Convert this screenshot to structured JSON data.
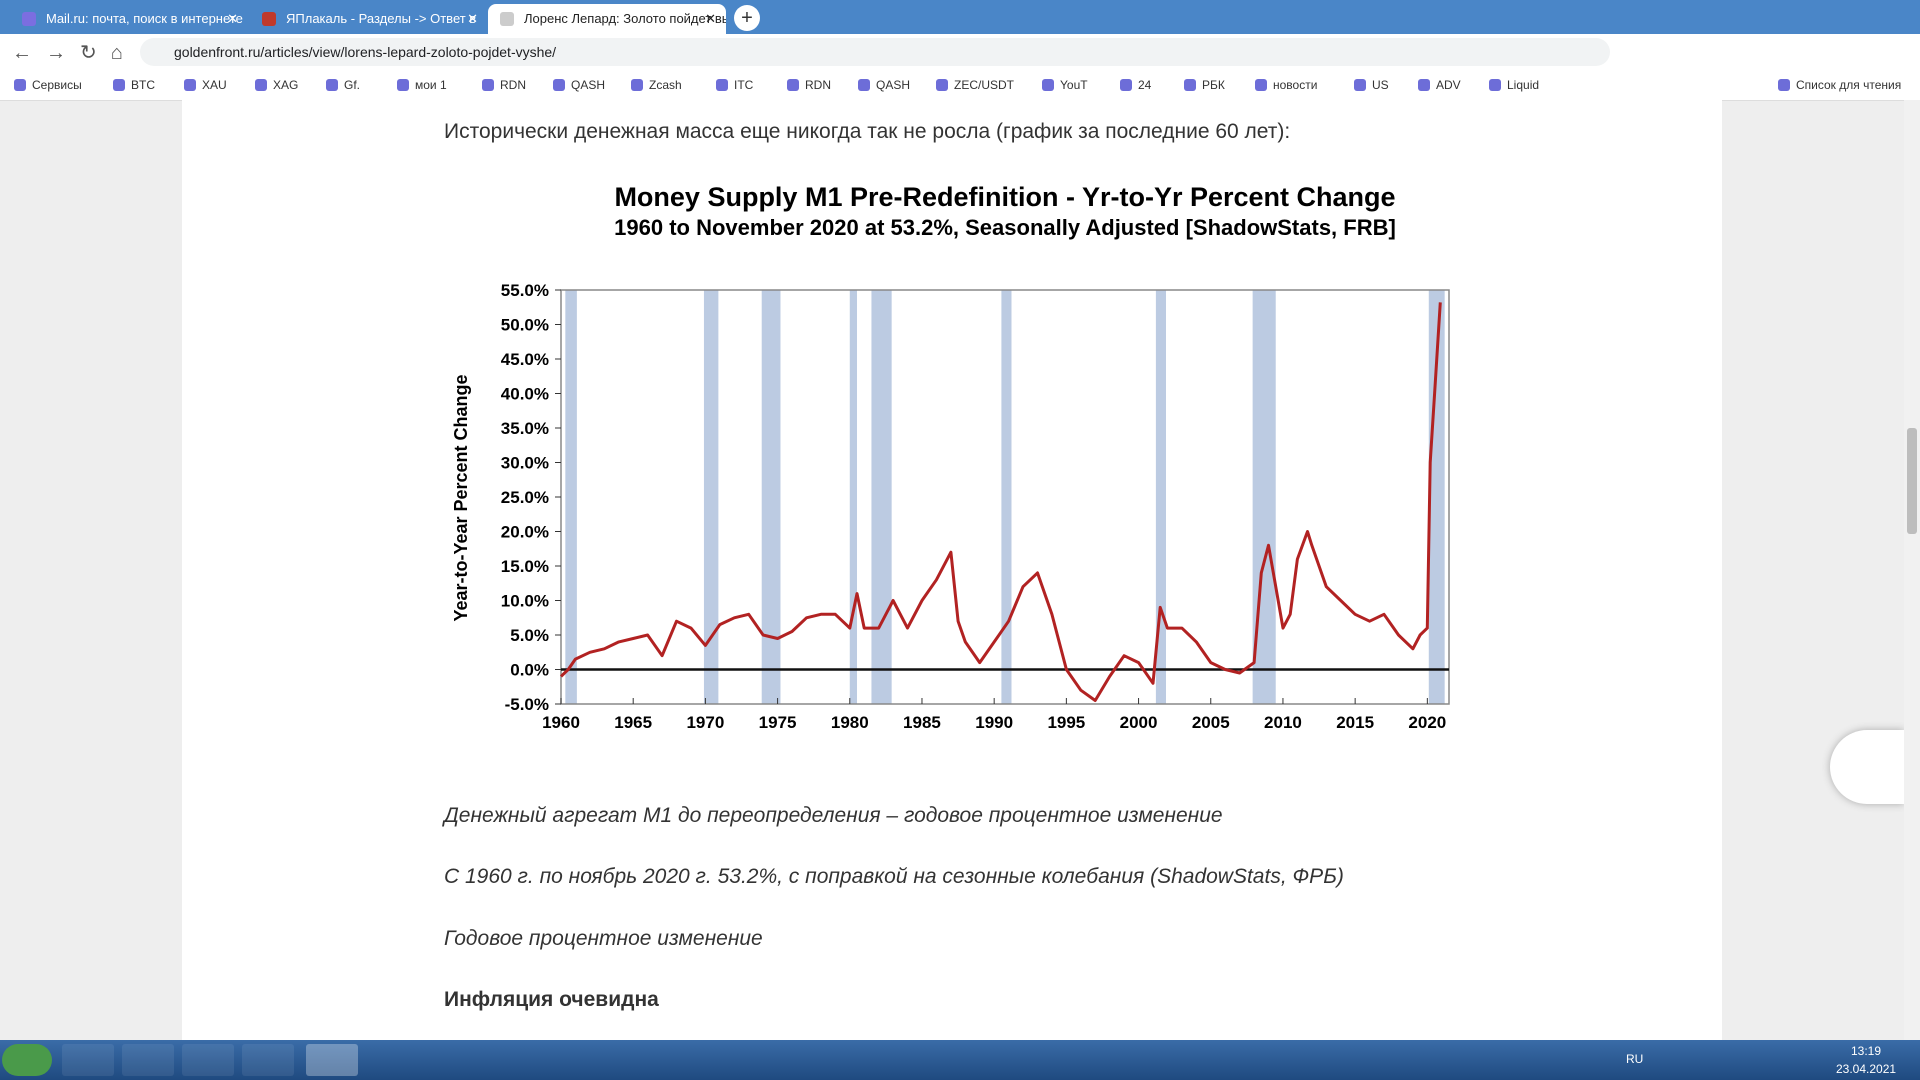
{
  "browser": {
    "tabs": [
      "Mail.ru: почта, поиск в интернете",
      "ЯПлакаль - Разделы -> Ответ в",
      "Лоренс Лепард: Золото пойдет выше"
    ],
    "address": "goldenfront.ru/articles/view/lorens-lepard-zoloto-pojdet-vyshe/",
    "bookmarks": [
      "Сервисы",
      "BTC",
      "XAU",
      "XAG",
      "Gf.",
      "мои 1",
      "RDN",
      "QASH",
      "Zcash",
      "ITC",
      "RDN",
      "QASH",
      "ZEC/USDT",
      "YouT",
      "24",
      "РБК",
      "новости",
      "US",
      "ADV",
      "Liquid"
    ],
    "reading_list": "Список для чтения"
  },
  "article": {
    "intro": "Исторически денежная масса еще никогда так не росла (график за последние 60 лет):",
    "captions": [
      "Денежный агрегат М1 до переопределения – годовое процентное изменение",
      "С 1960 г. по ноябрь 2020 г. 53.2%, с поправкой на сезонные колебания (ShadowStats, ФРБ)",
      "Годовое процентное изменение"
    ],
    "heading": "Инфляция очевидна"
  },
  "chart_data": {
    "type": "line",
    "title": "Money Supply M1 Pre-Redefinition -  Yr-to-Yr Percent Change",
    "subtitle": "1960 to November 2020 at 53.2%, Seasonally Adjusted  [ShadowStats, FRB]",
    "y_label": "Year-to-Year Percent Change",
    "color": "#b22222",
    "band_color": "#bccbe2",
    "x": [
      1960,
      1960.5,
      1961,
      1962,
      1963,
      1964,
      1965,
      1966,
      1967,
      1968,
      1969,
      1970,
      1971,
      1972,
      1973,
      1974,
      1975,
      1976,
      1977,
      1978,
      1979,
      1980,
      1980.5,
      1981,
      1982,
      1983,
      1984,
      1985,
      1986,
      1987,
      1987.5,
      1988,
      1989,
      1990,
      1991,
      1992,
      1993,
      1994,
      1995,
      1996,
      1997,
      1998,
      1999,
      2000,
      2001,
      2001.5,
      2002,
      2003,
      2004,
      2005,
      2006,
      2007,
      2008,
      2008.5,
      2009,
      2010,
      2010.5,
      2011,
      2011.7,
      2012,
      2013,
      2014,
      2015,
      2016,
      2017,
      2018,
      2019,
      2019.5,
      2020,
      2020.2,
      2020.5,
      2020.9
    ],
    "values": [
      -1,
      0,
      1.5,
      2.5,
      3,
      4,
      4.5,
      5,
      2,
      7,
      6,
      3.5,
      6.5,
      7.5,
      8,
      5,
      4.5,
      5.5,
      7.5,
      8,
      8,
      6,
      11,
      6,
      6,
      10,
      6,
      10,
      13,
      17,
      7,
      4,
      1,
      4,
      7,
      12,
      14,
      8,
      0,
      -3,
      -4.5,
      -1,
      2,
      1,
      -2,
      9,
      6,
      6,
      4,
      1,
      0,
      -0.5,
      1,
      14,
      18,
      6,
      8,
      16,
      20,
      18,
      12,
      10,
      8,
      7,
      8,
      5,
      3,
      5,
      6,
      30,
      40,
      53.2
    ],
    "recessions": [
      [
        1960.3,
        1961.1
      ],
      [
        1969.9,
        1970.9
      ],
      [
        1973.9,
        1975.2
      ],
      [
        1980,
        1980.5
      ],
      [
        1981.5,
        1982.9
      ],
      [
        1990.5,
        1991.2
      ],
      [
        2001.2,
        2001.9
      ],
      [
        2007.9,
        2009.5
      ],
      [
        2020.1,
        2021.2
      ]
    ],
    "xlim": [
      1960,
      2021.5
    ],
    "ylim": [
      -5,
      55
    ],
    "xticks": [
      1960,
      1965,
      1970,
      1975,
      1980,
      1985,
      1990,
      1995,
      2000,
      2005,
      2010,
      2015,
      2020
    ],
    "yticks": [
      {
        "value": 55,
        "label": "55.0%"
      },
      {
        "value": 50,
        "label": "50.0%"
      },
      {
        "value": 45,
        "label": "45.0%"
      },
      {
        "value": 40,
        "label": "40.0%"
      },
      {
        "value": 35,
        "label": "35.0%"
      },
      {
        "value": 30,
        "label": "30.0%"
      },
      {
        "value": 25,
        "label": "25.0%"
      },
      {
        "value": 20,
        "label": "20.0%"
      },
      {
        "value": 15,
        "label": "15.0%"
      },
      {
        "value": 10,
        "label": "10.0%"
      },
      {
        "value": 5,
        "label": "5.0%"
      },
      {
        "value": 0,
        "label": "0.0%"
      },
      {
        "value": -5,
        "label": "-5.0%"
      }
    ]
  },
  "taskbar": {
    "language": "RU",
    "time": "13:19",
    "date": "23.04.2021"
  }
}
